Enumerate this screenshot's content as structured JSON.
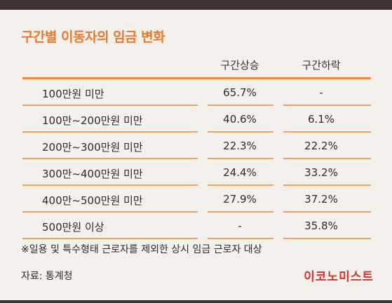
{
  "title": "구간별 이동자의 임금 변화",
  "columns": {
    "up": "구간상승",
    "down": "구간하락"
  },
  "rows": [
    {
      "name": "100만원 미만",
      "up": "65.7%",
      "down": "-"
    },
    {
      "name": "100만~200만원 미만",
      "up": "40.6%",
      "down": "6.1%"
    },
    {
      "name": "200만~300만원 미만",
      "up": "22.3%",
      "down": "22.2%"
    },
    {
      "name": "300만~400만원 미만",
      "up": "24.4%",
      "down": "33.2%"
    },
    {
      "name": "400만~500만원 미만",
      "up": "27.9%",
      "down": "37.2%"
    },
    {
      "name": "500만원 이상",
      "up": "-",
      "down": "35.8%"
    }
  ],
  "footnote": "※일용 및 특수형태 근로자를 제외한 상시 임금 근로자 대상",
  "source": "자료: 통계청",
  "brand": "이코노미스트",
  "colors": {
    "accent": "#e8792f",
    "brand": "#d9322b",
    "background": "#f4f1ec"
  }
}
